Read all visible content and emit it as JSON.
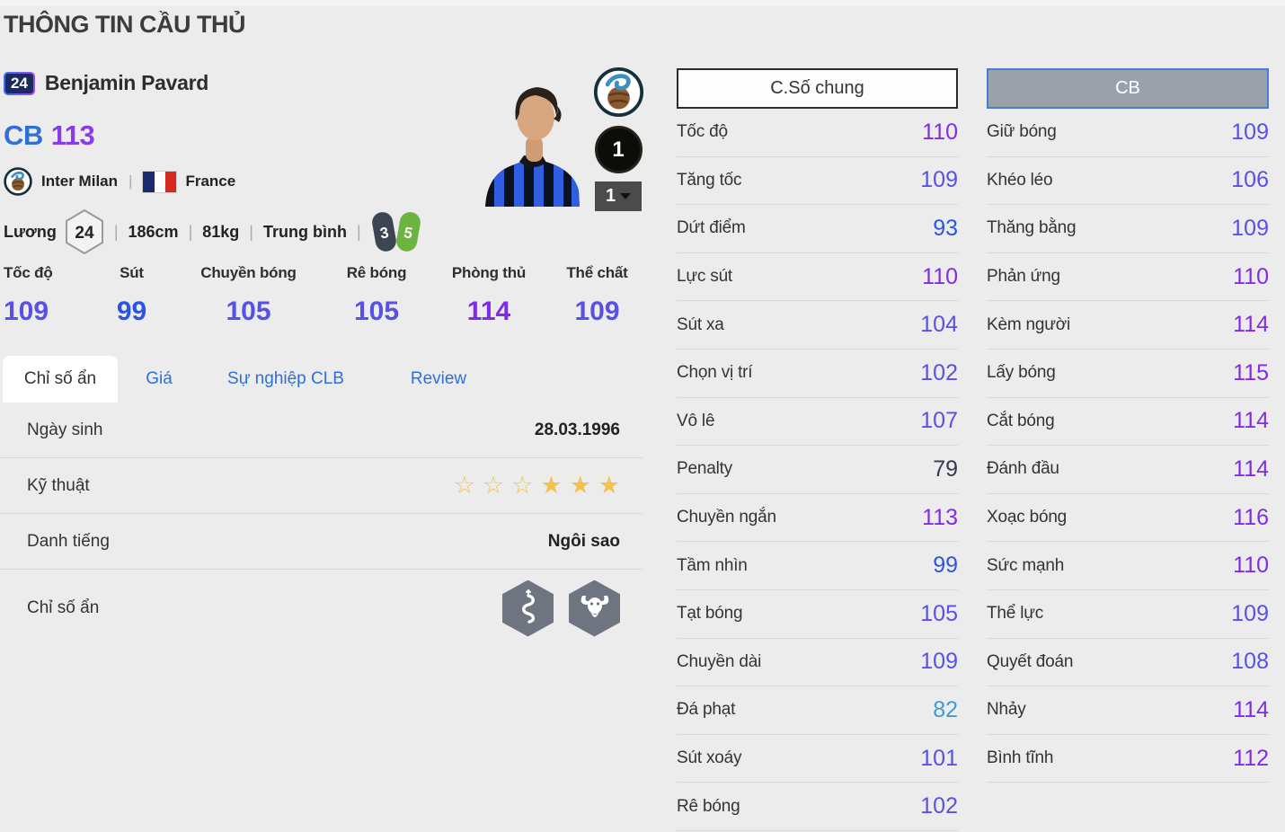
{
  "page": {
    "title": "THÔNG TIN CẦU THỦ"
  },
  "player": {
    "jersey_number": "24",
    "name": "Benjamin Pavard",
    "position": "CB",
    "rating": "113",
    "club": "Inter Milan",
    "nation": "France",
    "salary_label": "Lương",
    "salary": "24",
    "height": "186cm",
    "weight": "81kg",
    "body_type": "Trung bình",
    "weak_foot": "3",
    "strong_foot": "5",
    "enhance_level": "1",
    "grade_selector": "1"
  },
  "main_stats": [
    {
      "label": "Tốc độ",
      "value": 109
    },
    {
      "label": "Sút",
      "value": 99
    },
    {
      "label": "Chuyền bóng",
      "value": 105
    },
    {
      "label": "Rê bóng",
      "value": 105
    },
    {
      "label": "Phòng thủ",
      "value": 114
    },
    {
      "label": "Thể chất",
      "value": 109
    }
  ],
  "tabs": [
    {
      "label": "Chỉ số ẩn",
      "active": true
    },
    {
      "label": "Giá",
      "active": false
    },
    {
      "label": "Sự nghiệp CLB",
      "active": false
    },
    {
      "label": "Review",
      "active": false
    }
  ],
  "info_rows": [
    {
      "label": "Ngày sinh",
      "type": "text",
      "value": "28.03.1996"
    },
    {
      "label": "Kỹ thuật",
      "type": "stars",
      "empty": 3,
      "filled": 3
    },
    {
      "label": "Danh tiếng",
      "type": "text",
      "value": "Ngôi sao"
    },
    {
      "label": "Chỉ số ẩn",
      "type": "icons",
      "icons": [
        "snake-icon",
        "buffalo-icon"
      ]
    }
  ],
  "stat_tabs": [
    {
      "label": "C.Số chung",
      "selected": false
    },
    {
      "label": "CB",
      "selected": true
    }
  ],
  "detail_stats": {
    "left": [
      {
        "label": "Tốc độ",
        "value": 110
      },
      {
        "label": "Tăng tốc",
        "value": 109
      },
      {
        "label": "Dứt điểm",
        "value": 93
      },
      {
        "label": "Lực sút",
        "value": 110
      },
      {
        "label": "Sút xa",
        "value": 104
      },
      {
        "label": "Chọn vị trí",
        "value": 102
      },
      {
        "label": "Vô lê",
        "value": 107
      },
      {
        "label": "Penalty",
        "value": 79
      },
      {
        "label": "Chuyền ngắn",
        "value": 113
      },
      {
        "label": "Tầm nhìn",
        "value": 99
      },
      {
        "label": "Tạt bóng",
        "value": 105
      },
      {
        "label": "Chuyền dài",
        "value": 109
      },
      {
        "label": "Đá phạt",
        "value": 82
      },
      {
        "label": "Sút xoáy",
        "value": 101
      },
      {
        "label": "Rê bóng",
        "value": 102
      }
    ],
    "right": [
      {
        "label": "Giữ bóng",
        "value": 109
      },
      {
        "label": "Khéo léo",
        "value": 106
      },
      {
        "label": "Thăng bằng",
        "value": 109
      },
      {
        "label": "Phản ứng",
        "value": 110
      },
      {
        "label": "Kèm người",
        "value": 114
      },
      {
        "label": "Lấy bóng",
        "value": 115
      },
      {
        "label": "Cắt bóng",
        "value": 114
      },
      {
        "label": "Đánh đầu",
        "value": 114
      },
      {
        "label": "Xoạc bóng",
        "value": 116
      },
      {
        "label": "Sức mạnh",
        "value": 110
      },
      {
        "label": "Thể lực",
        "value": 109
      },
      {
        "label": "Quyết đoán",
        "value": 108
      },
      {
        "label": "Nhảy",
        "value": 114
      },
      {
        "label": "Bình tĩnh",
        "value": 112
      }
    ]
  },
  "colors": {
    "tier_110_plus": "#7f2ce8",
    "tier_100_109": "#5950e8",
    "tier_90_99": "#2b55e0",
    "tier_80_89": "#3f9bd8",
    "tier_below_80": "#2f3c50",
    "position_blue": "#2f6fd8",
    "rating_purple": "#8a3be8",
    "tab_blue": "#2f6fd8",
    "star_gold": "#f2c24e",
    "foot_weak": "#3c4653",
    "foot_strong": "#6cb33f"
  }
}
